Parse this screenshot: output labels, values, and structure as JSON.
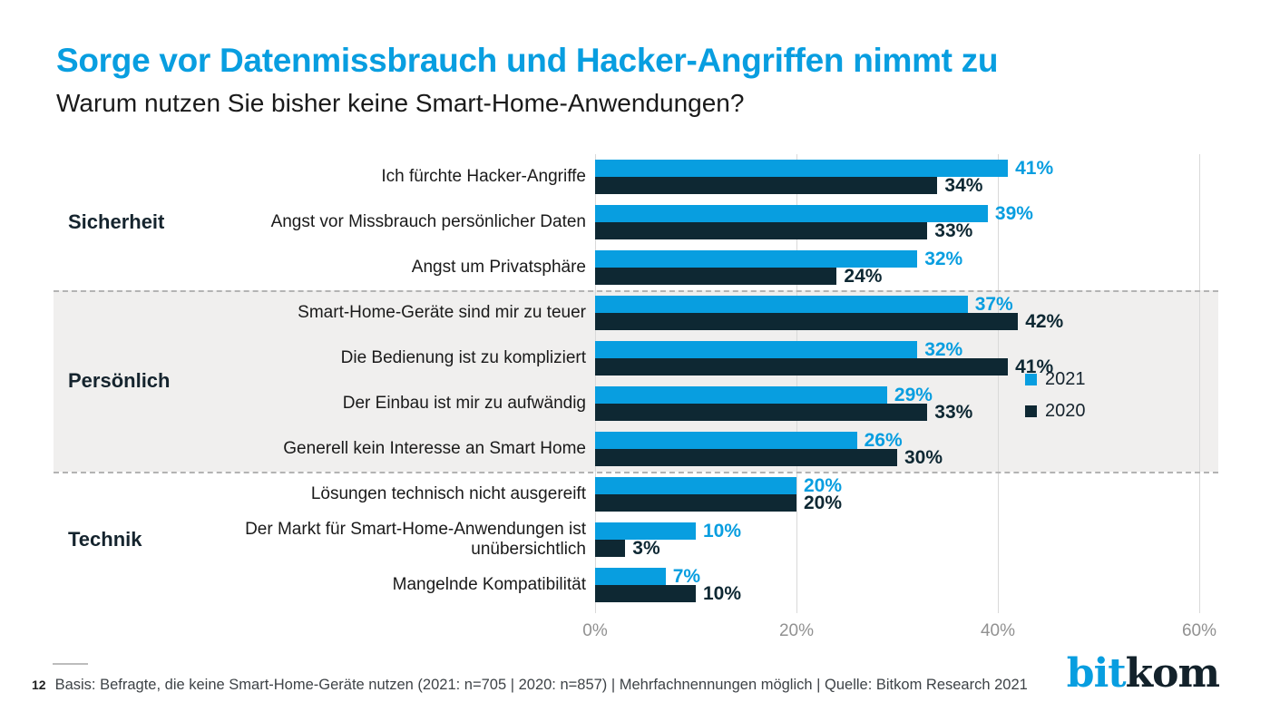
{
  "header": {
    "title": "Sorge vor Datenmissbrauch und Hacker-Angriffen nimmt zu",
    "subtitle": "Warum nutzen Sie bisher keine Smart-Home-Anwendungen?"
  },
  "chart_data": {
    "type": "bar",
    "orientation": "horizontal",
    "unit": "%",
    "xlim": [
      0,
      60
    ],
    "x_ticks": [
      "0%",
      "20%",
      "40%",
      "60%"
    ],
    "grid": true,
    "legend_position": "right",
    "series": [
      {
        "name": "2021",
        "color": "#089ee0"
      },
      {
        "name": "2020",
        "color": "#0e2833"
      }
    ],
    "groups": [
      {
        "label": "Sicherheit",
        "highlighted": false,
        "items": [
          {
            "label": "Ich fürchte Hacker-Angriffe",
            "values": [
              41,
              34
            ]
          },
          {
            "label": "Angst vor Missbrauch persönlicher Daten",
            "values": [
              39,
              33
            ]
          },
          {
            "label": "Angst um Privatsphäre",
            "values": [
              32,
              24
            ]
          }
        ]
      },
      {
        "label": "Persönlich",
        "highlighted": true,
        "items": [
          {
            "label": "Smart-Home-Geräte sind mir zu teuer",
            "values": [
              37,
              42
            ]
          },
          {
            "label": "Die Bedienung ist zu kompliziert",
            "values": [
              32,
              41
            ]
          },
          {
            "label": "Der Einbau ist mir zu aufwändig",
            "values": [
              29,
              33
            ]
          },
          {
            "label": "Generell kein Interesse an Smart Home",
            "values": [
              26,
              30
            ]
          }
        ]
      },
      {
        "label": "Technik",
        "highlighted": false,
        "items": [
          {
            "label": "Lösungen technisch nicht ausgereift",
            "values": [
              20,
              20
            ]
          },
          {
            "label": "Der Markt für Smart-Home-Anwendungen ist\nunübersichtlich",
            "values": [
              10,
              3
            ]
          },
          {
            "label": "Mangelnde Kompatibilität",
            "values": [
              7,
              10
            ]
          }
        ]
      }
    ]
  },
  "footer": {
    "page_number": "12",
    "note": "Basis: Befragte, die keine Smart-Home-Geräte nutzen (2021: n=705 | 2020: n=857) | Mehrfachnennungen möglich | Quelle: Bitkom Research 2021"
  },
  "logo": {
    "part_blue": "bit",
    "part_dark": "kom"
  },
  "colors": {
    "accent_blue": "#089ee0",
    "dark_navy": "#0e2833",
    "highlight_band": "#f0efee",
    "gridline": "#d9d9d9",
    "axis_text": "#919191",
    "footer_text": "#3e4347"
  }
}
